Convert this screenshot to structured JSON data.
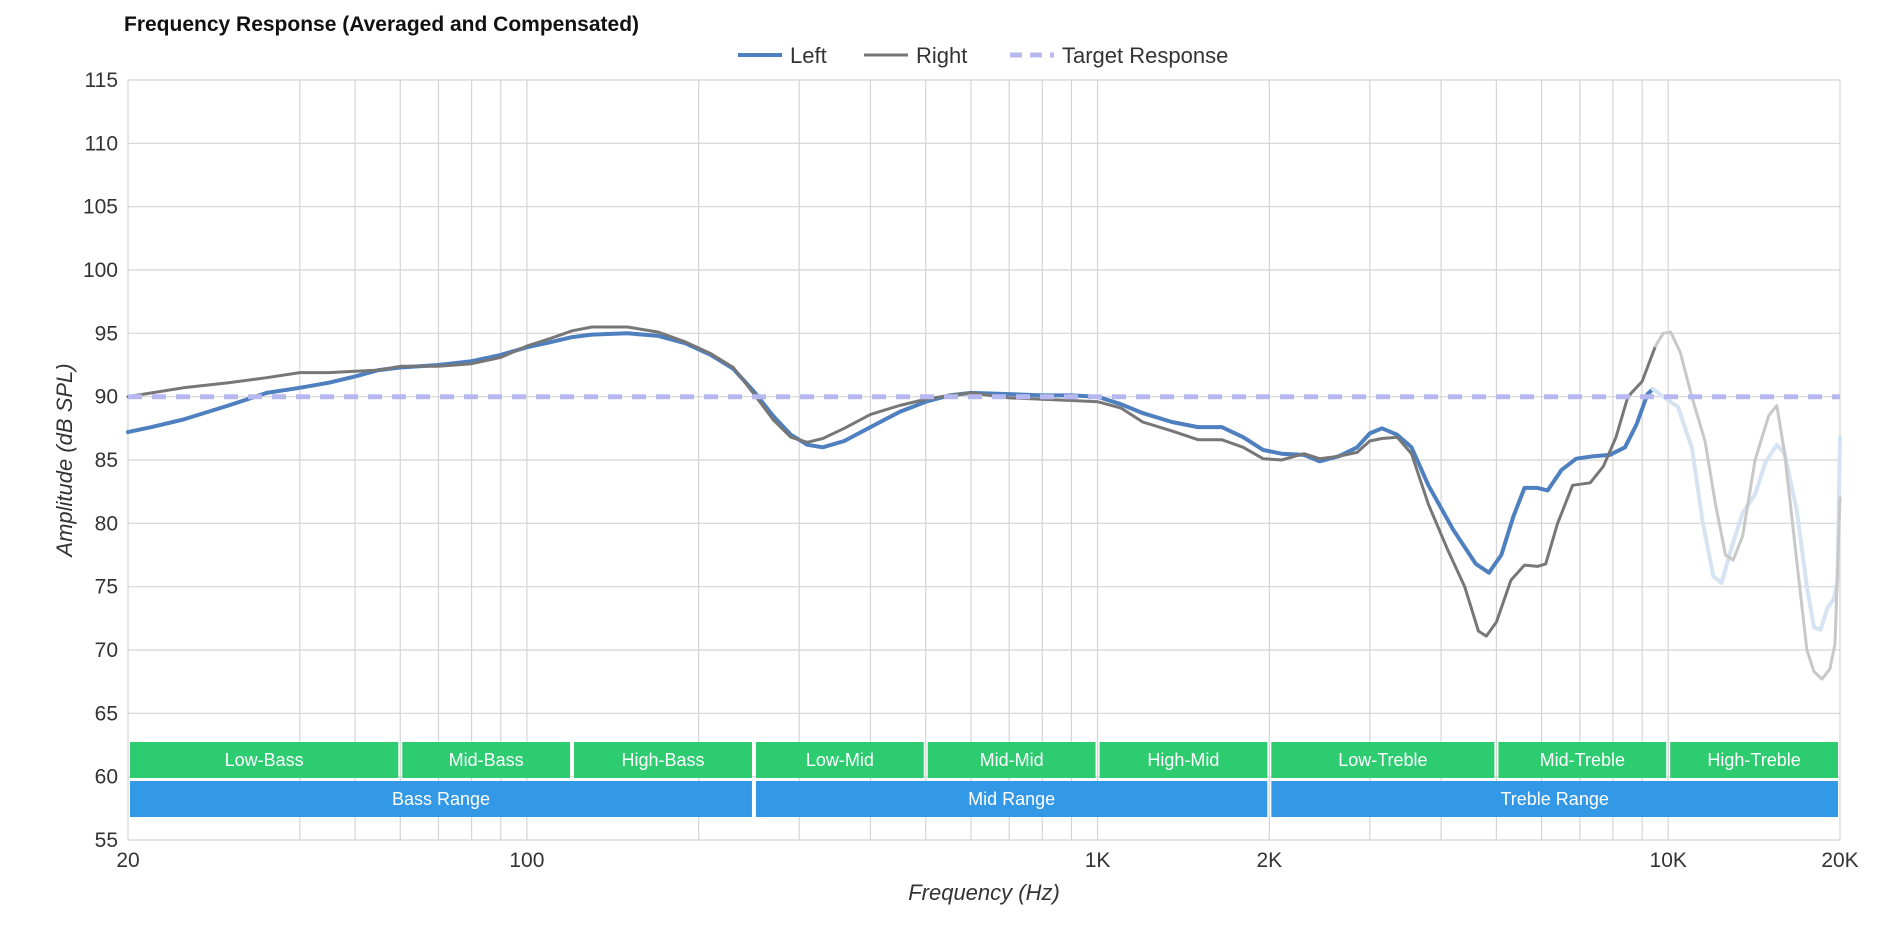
{
  "chart_data": {
    "type": "line",
    "title": "Frequency Response (Averaged and Compensated)",
    "xlabel": "Frequency (Hz)",
    "ylabel": "Amplitude (dB SPL)",
    "x_scale": "log",
    "xlim": [
      20,
      20000
    ],
    "ylim": [
      55,
      115
    ],
    "y_ticks": [
      55,
      60,
      65,
      70,
      75,
      80,
      85,
      90,
      95,
      100,
      105,
      110,
      115
    ],
    "x_tick_labels": [
      {
        "value": 20,
        "label": "20"
      },
      {
        "value": 100,
        "label": "100"
      },
      {
        "value": 1000,
        "label": "1K"
      },
      {
        "value": 2000,
        "label": "2K"
      },
      {
        "value": 10000,
        "label": "10K"
      },
      {
        "value": 20000,
        "label": "20K"
      }
    ],
    "x_gridlines": [
      20,
      40,
      50,
      60,
      70,
      80,
      90,
      100,
      200,
      300,
      400,
      500,
      600,
      700,
      800,
      900,
      1000,
      2000,
      3000,
      4000,
      5000,
      6000,
      7000,
      8000,
      9000,
      10000,
      20000
    ],
    "grid": true,
    "legend_position": "top-center",
    "series": [
      {
        "name": "Left",
        "color": "#4e7fbf",
        "style": "solid",
        "points": [
          [
            20,
            87.2
          ],
          [
            22,
            87.6
          ],
          [
            25,
            88.2
          ],
          [
            30,
            89.3
          ],
          [
            35,
            90.3
          ],
          [
            40,
            90.7
          ],
          [
            45,
            91.1
          ],
          [
            50,
            91.6
          ],
          [
            55,
            92.1
          ],
          [
            60,
            92.3
          ],
          [
            70,
            92.5
          ],
          [
            80,
            92.8
          ],
          [
            90,
            93.3
          ],
          [
            100,
            93.9
          ],
          [
            110,
            94.3
          ],
          [
            120,
            94.7
          ],
          [
            130,
            94.9
          ],
          [
            150,
            95.0
          ],
          [
            170,
            94.8
          ],
          [
            190,
            94.2
          ],
          [
            210,
            93.3
          ],
          [
            230,
            92.2
          ],
          [
            250,
            90.4
          ],
          [
            270,
            88.5
          ],
          [
            290,
            87.0
          ],
          [
            310,
            86.2
          ],
          [
            330,
            86.0
          ],
          [
            360,
            86.5
          ],
          [
            400,
            87.6
          ],
          [
            450,
            88.8
          ],
          [
            500,
            89.6
          ],
          [
            550,
            90.1
          ],
          [
            600,
            90.3
          ],
          [
            700,
            90.2
          ],
          [
            800,
            90.1
          ],
          [
            900,
            90.1
          ],
          [
            1000,
            90.0
          ],
          [
            1100,
            89.4
          ],
          [
            1200,
            88.7
          ],
          [
            1350,
            88.0
          ],
          [
            1500,
            87.6
          ],
          [
            1650,
            87.6
          ],
          [
            1800,
            86.8
          ],
          [
            1950,
            85.8
          ],
          [
            2100,
            85.5
          ],
          [
            2300,
            85.4
          ],
          [
            2450,
            84.9
          ],
          [
            2650,
            85.3
          ],
          [
            2850,
            86.0
          ],
          [
            3000,
            87.1
          ],
          [
            3150,
            87.5
          ],
          [
            3350,
            87.0
          ],
          [
            3550,
            86.0
          ],
          [
            3800,
            83.0
          ],
          [
            4200,
            79.5
          ],
          [
            4600,
            76.8
          ],
          [
            4850,
            76.1
          ],
          [
            5100,
            77.5
          ],
          [
            5350,
            80.5
          ],
          [
            5600,
            82.8
          ],
          [
            5900,
            82.8
          ],
          [
            6150,
            82.6
          ],
          [
            6500,
            84.2
          ],
          [
            6900,
            85.1
          ],
          [
            7400,
            85.3
          ],
          [
            7900,
            85.4
          ],
          [
            8400,
            86.0
          ],
          [
            8800,
            87.8
          ],
          [
            9200,
            90.2
          ],
          [
            9400,
            90.6
          ]
        ]
      },
      {
        "name": "Left (extended)",
        "color": "#d6e3f2",
        "style": "solid",
        "points": [
          [
            9400,
            90.6
          ],
          [
            9800,
            90.0
          ],
          [
            10400,
            89.2
          ],
          [
            11000,
            86.0
          ],
          [
            11500,
            80.0
          ],
          [
            12000,
            75.8
          ],
          [
            12400,
            75.3
          ],
          [
            13000,
            78.5
          ],
          [
            13500,
            80.8
          ],
          [
            14200,
            82.3
          ],
          [
            14800,
            84.8
          ],
          [
            15500,
            86.2
          ],
          [
            16000,
            85.5
          ],
          [
            16800,
            81.0
          ],
          [
            17500,
            75.0
          ],
          [
            18000,
            71.8
          ],
          [
            18500,
            71.6
          ],
          [
            19000,
            73.3
          ],
          [
            19500,
            74.0
          ],
          [
            19800,
            75.5
          ],
          [
            20000,
            86.8
          ]
        ]
      },
      {
        "name": "Right",
        "color": "#777777",
        "style": "solid",
        "points": [
          [
            20,
            90.0
          ],
          [
            22,
            90.3
          ],
          [
            25,
            90.7
          ],
          [
            30,
            91.1
          ],
          [
            35,
            91.5
          ],
          [
            40,
            91.9
          ],
          [
            45,
            91.9
          ],
          [
            50,
            92.0
          ],
          [
            55,
            92.1
          ],
          [
            60,
            92.4
          ],
          [
            70,
            92.4
          ],
          [
            80,
            92.6
          ],
          [
            90,
            93.1
          ],
          [
            100,
            94.0
          ],
          [
            110,
            94.6
          ],
          [
            120,
            95.2
          ],
          [
            130,
            95.5
          ],
          [
            150,
            95.5
          ],
          [
            170,
            95.1
          ],
          [
            190,
            94.3
          ],
          [
            210,
            93.4
          ],
          [
            230,
            92.3
          ],
          [
            250,
            90.2
          ],
          [
            270,
            88.2
          ],
          [
            290,
            86.8
          ],
          [
            310,
            86.4
          ],
          [
            330,
            86.7
          ],
          [
            360,
            87.5
          ],
          [
            400,
            88.6
          ],
          [
            450,
            89.3
          ],
          [
            500,
            89.8
          ],
          [
            550,
            90.1
          ],
          [
            600,
            90.3
          ],
          [
            700,
            89.9
          ],
          [
            800,
            89.8
          ],
          [
            900,
            89.7
          ],
          [
            1000,
            89.6
          ],
          [
            1100,
            89.1
          ],
          [
            1200,
            88.0
          ],
          [
            1350,
            87.3
          ],
          [
            1500,
            86.6
          ],
          [
            1650,
            86.6
          ],
          [
            1800,
            86.0
          ],
          [
            1950,
            85.1
          ],
          [
            2100,
            85.0
          ],
          [
            2300,
            85.5
          ],
          [
            2450,
            85.1
          ],
          [
            2650,
            85.3
          ],
          [
            2850,
            85.6
          ],
          [
            3000,
            86.5
          ],
          [
            3150,
            86.7
          ],
          [
            3350,
            86.8
          ],
          [
            3550,
            85.5
          ],
          [
            3800,
            81.5
          ],
          [
            4100,
            78.0
          ],
          [
            4400,
            75.0
          ],
          [
            4650,
            71.5
          ],
          [
            4800,
            71.1
          ],
          [
            5000,
            72.2
          ],
          [
            5300,
            75.5
          ],
          [
            5600,
            76.7
          ],
          [
            5900,
            76.6
          ],
          [
            6100,
            76.8
          ],
          [
            6400,
            80.0
          ],
          [
            6800,
            83.0
          ],
          [
            7300,
            83.2
          ],
          [
            7700,
            84.5
          ],
          [
            8100,
            86.8
          ],
          [
            8500,
            90.0
          ],
          [
            9000,
            91.2
          ],
          [
            9500,
            94.0
          ]
        ]
      },
      {
        "name": "Right (extended)",
        "color": "#c8c8c8",
        "style": "solid",
        "points": [
          [
            9500,
            94.0
          ],
          [
            9800,
            95.0
          ],
          [
            10100,
            95.1
          ],
          [
            10500,
            93.5
          ],
          [
            11000,
            90.0
          ],
          [
            11600,
            86.5
          ],
          [
            12100,
            81.5
          ],
          [
            12600,
            77.5
          ],
          [
            13000,
            77.1
          ],
          [
            13500,
            79.0
          ],
          [
            14200,
            85.0
          ],
          [
            15000,
            88.5
          ],
          [
            15500,
            89.3
          ],
          [
            16000,
            85.5
          ],
          [
            16800,
            77.0
          ],
          [
            17500,
            70.0
          ],
          [
            18000,
            68.3
          ],
          [
            18600,
            67.7
          ],
          [
            19200,
            68.5
          ],
          [
            19600,
            70.5
          ],
          [
            20000,
            82.0
          ]
        ]
      },
      {
        "name": "Target Response",
        "color": "#b8b8f0",
        "style": "dashed",
        "points": [
          [
            20,
            90
          ],
          [
            20000,
            90
          ]
        ]
      }
    ],
    "legend": [
      {
        "label": "Left",
        "color": "#4e7fbf",
        "style": "solid"
      },
      {
        "label": "Right",
        "color": "#777777",
        "style": "solid"
      },
      {
        "label": "Target Response",
        "color": "#b8b8f0",
        "style": "dashed"
      }
    ],
    "range_bands": [
      {
        "label": "Low-Bass",
        "from": 20,
        "to": 60,
        "color": "#2ecc71"
      },
      {
        "label": "Mid-Bass",
        "from": 60,
        "to": 120,
        "color": "#2ecc71"
      },
      {
        "label": "High-Bass",
        "from": 120,
        "to": 250,
        "color": "#2ecc71"
      },
      {
        "label": "Low-Mid",
        "from": 250,
        "to": 500,
        "color": "#2ecc71"
      },
      {
        "label": "Mid-Mid",
        "from": 500,
        "to": 1000,
        "color": "#2ecc71"
      },
      {
        "label": "High-Mid",
        "from": 1000,
        "to": 2000,
        "color": "#2ecc71"
      },
      {
        "label": "Low-Treble",
        "from": 2000,
        "to": 5000,
        "color": "#2ecc71"
      },
      {
        "label": "Mid-Treble",
        "from": 5000,
        "to": 10000,
        "color": "#2ecc71"
      },
      {
        "label": "High-Treble",
        "from": 10000,
        "to": 20000,
        "color": "#2ecc71"
      }
    ],
    "group_bands": [
      {
        "label": "Bass Range",
        "from": 20,
        "to": 250,
        "color": "#3399e6"
      },
      {
        "label": "Mid Range",
        "from": 250,
        "to": 2000,
        "color": "#3399e6"
      },
      {
        "label": "Treble Range",
        "from": 2000,
        "to": 20000,
        "color": "#3399e6"
      }
    ]
  }
}
